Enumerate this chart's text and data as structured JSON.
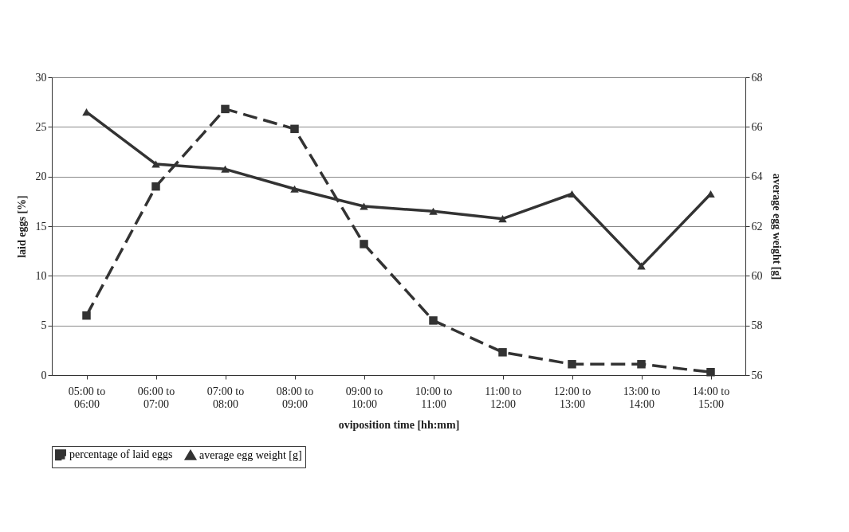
{
  "chart_data": {
    "type": "line",
    "xlabel": "oviposition time [hh:mm]",
    "ylabel": "laid eggs [%]",
    "y2label": "average egg weight [g]",
    "categories": [
      "05:00 to 06:00",
      "06:00 to 07:00",
      "07:00 to 08:00",
      "08:00 to 09:00",
      "09:00 to 10:00",
      "10:00 to 11:00",
      "11:00 to 12:00",
      "12:00 to 13:00",
      "13:00 to 14:00",
      "14:00 to 15:00"
    ],
    "series": [
      {
        "name": "percentage of laid eggs",
        "color": "#333333",
        "marker": "square",
        "line_style": "dashed",
        "values": [
          6.0,
          19.0,
          26.8,
          24.8,
          13.2,
          5.5,
          2.3,
          1.1,
          1.1,
          0.3
        ]
      },
      {
        "name": "average egg weight [g]",
        "color": "#333333",
        "marker": "triangle",
        "line_style": "solid",
        "axis": "y2",
        "values": [
          66.6,
          64.5,
          64.3,
          63.5,
          62.8,
          62.6,
          62.3,
          63.3,
          60.4,
          63.3
        ]
      }
    ],
    "ylim": [
      0,
      30
    ],
    "yticks": [
      0,
      5,
      10,
      15,
      20,
      25,
      30
    ],
    "y2lim": [
      56,
      68
    ],
    "y2ticks": [
      56,
      58,
      60,
      62,
      64,
      66,
      68
    ],
    "grid": "y",
    "legend": "bottom"
  }
}
